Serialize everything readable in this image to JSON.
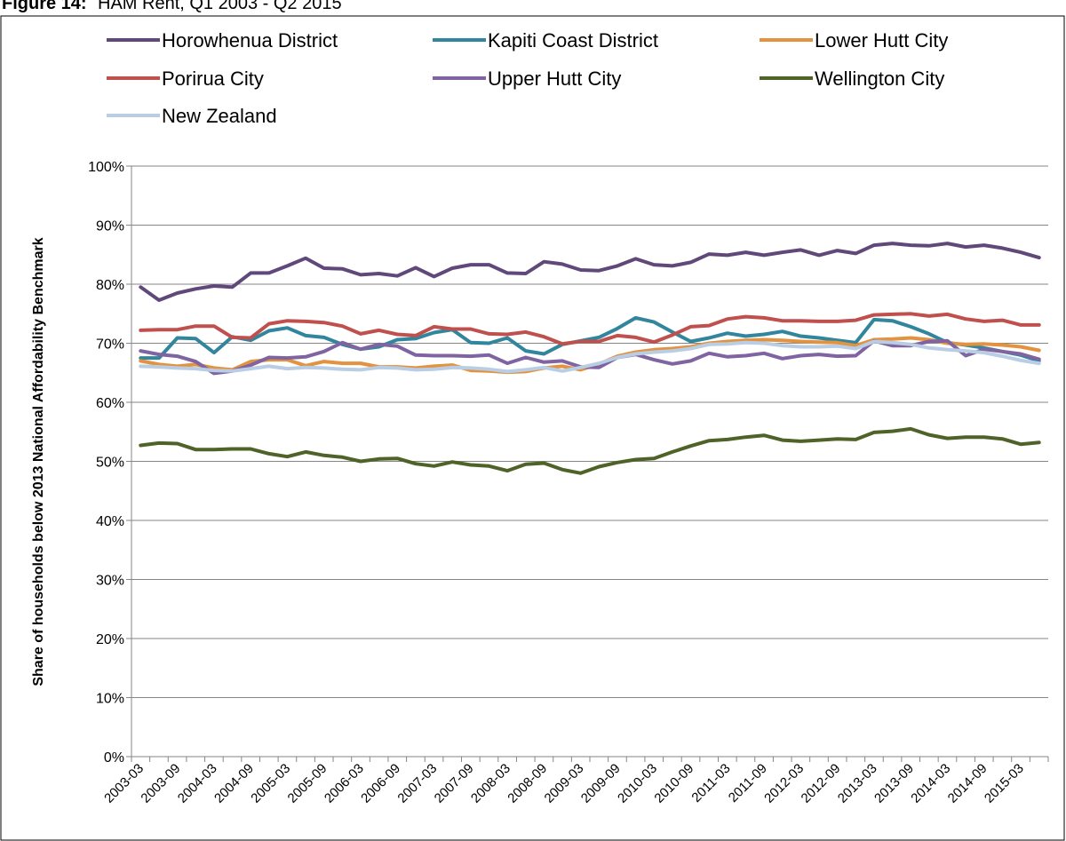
{
  "chart_data": {
    "type": "line",
    "title_label": "Figure 14:",
    "title": "HAM Rent, Q1 2003 - Q2 2015",
    "y_label": "Share of households below 2013 National Affordability Benchmark",
    "categories": [
      "2003-03",
      null,
      "2003-09",
      null,
      "2004-03",
      null,
      "2004-09",
      null,
      "2005-03",
      null,
      "2005-09",
      null,
      "2006-03",
      null,
      "2006-09",
      null,
      "2007-03",
      null,
      "2007-09",
      null,
      "2008-03",
      null,
      "2008-09",
      null,
      "2009-03",
      null,
      "2009-09",
      null,
      "2010-03",
      null,
      "2010-09",
      null,
      "2011-03",
      null,
      "2011-09",
      null,
      "2012-03",
      null,
      "2012-09",
      null,
      "2013-03",
      null,
      "2013-09",
      null,
      "2014-03",
      null,
      "2014-09",
      null,
      "2015-03",
      null
    ],
    "series": [
      {
        "name": "Horowhenua District",
        "color": "#60497a",
        "values": [
          79.5,
          77.3,
          78.5,
          79.2,
          79.7,
          79.5,
          81.9,
          81.9,
          83.1,
          84.4,
          82.7,
          82.6,
          81.6,
          81.8,
          81.4,
          82.8,
          81.3,
          82.7,
          83.3,
          83.3,
          81.9,
          81.8,
          83.8,
          83.4,
          82.4,
          82.3,
          83.1,
          84.3,
          83.3,
          83.1,
          83.7,
          85.1,
          84.9,
          85.4,
          84.9,
          85.4,
          85.8,
          84.9,
          85.7,
          85.2,
          86.6,
          86.9,
          86.6,
          86.5,
          86.9,
          86.3,
          86.6,
          86.1,
          85.4,
          84.5
        ]
      },
      {
        "name": "Kapiti Coast District",
        "color": "#31859c",
        "values": [
          67.5,
          67.5,
          70.9,
          70.8,
          68.4,
          71.1,
          70.5,
          72.1,
          72.6,
          71.3,
          71.0,
          69.8,
          69.0,
          69.4,
          70.6,
          70.8,
          71.8,
          72.3,
          70.1,
          70.0,
          70.9,
          68.7,
          68.2,
          69.8,
          70.4,
          71.0,
          72.5,
          74.3,
          73.6,
          71.9,
          70.3,
          70.9,
          71.7,
          71.2,
          71.5,
          72.0,
          71.2,
          70.9,
          70.5,
          70.1,
          74.0,
          73.8,
          72.8,
          71.6,
          70.1,
          69.7,
          69.2,
          68.6,
          68.0,
          67.0
        ]
      },
      {
        "name": "Lower Hutt City",
        "color": "#e3923f",
        "values": [
          67.0,
          66.4,
          66.1,
          66.4,
          65.8,
          65.5,
          66.9,
          67.2,
          67.2,
          66.2,
          66.9,
          66.6,
          66.6,
          66.0,
          66.0,
          65.8,
          66.1,
          66.3,
          65.4,
          65.3,
          65.1,
          65.2,
          65.8,
          66.1,
          65.5,
          66.5,
          67.8,
          68.5,
          68.9,
          69.1,
          69.4,
          70.0,
          70.3,
          70.5,
          70.6,
          70.5,
          70.3,
          70.2,
          70.1,
          69.6,
          70.6,
          70.7,
          70.9,
          70.6,
          70.0,
          69.8,
          69.9,
          69.7,
          69.4,
          68.8
        ]
      },
      {
        "name": "Porirua City",
        "color": "#c0504d",
        "values": [
          72.2,
          72.3,
          72.3,
          72.9,
          72.9,
          71.0,
          70.9,
          73.3,
          73.8,
          73.7,
          73.5,
          72.9,
          71.6,
          72.2,
          71.5,
          71.3,
          72.8,
          72.4,
          72.4,
          71.6,
          71.5,
          71.9,
          71.1,
          69.9,
          70.3,
          70.3,
          71.3,
          71.0,
          70.2,
          71.4,
          72.8,
          73.0,
          74.1,
          74.5,
          74.3,
          73.8,
          73.8,
          73.7,
          73.7,
          73.9,
          74.8,
          74.9,
          75.0,
          74.6,
          74.9,
          74.1,
          73.7,
          73.9,
          73.1,
          73.1
        ]
      },
      {
        "name": "Upper Hutt City",
        "color": "#8064a2",
        "values": [
          68.7,
          68.1,
          67.8,
          66.9,
          64.9,
          65.3,
          66.3,
          67.6,
          67.5,
          67.7,
          68.6,
          70.1,
          69.0,
          69.8,
          69.5,
          68.0,
          67.9,
          67.9,
          67.8,
          68.0,
          66.6,
          67.6,
          66.8,
          67.0,
          66.0,
          65.9,
          67.6,
          68.1,
          67.2,
          66.5,
          67.0,
          68.3,
          67.7,
          67.9,
          68.3,
          67.4,
          67.9,
          68.1,
          67.8,
          67.9,
          70.4,
          69.6,
          69.6,
          70.3,
          70.4,
          67.9,
          69.0,
          68.6,
          68.2,
          67.3
        ]
      },
      {
        "name": "Wellington City",
        "color": "#4f6228",
        "values": [
          52.7,
          53.1,
          53.0,
          52.0,
          52.0,
          52.1,
          52.1,
          51.3,
          50.8,
          51.6,
          51.0,
          50.7,
          50.0,
          50.4,
          50.5,
          49.6,
          49.2,
          49.9,
          49.4,
          49.2,
          48.4,
          49.5,
          49.7,
          48.6,
          48.0,
          49.1,
          49.8,
          50.3,
          50.5,
          51.6,
          52.6,
          53.5,
          53.7,
          54.1,
          54.4,
          53.6,
          53.4,
          53.6,
          53.8,
          53.7,
          54.9,
          55.1,
          55.5,
          54.5,
          53.9,
          54.1,
          54.1,
          53.8,
          52.9,
          53.2
        ]
      },
      {
        "name": "New Zealand",
        "color": "#b9cde5",
        "values": [
          66.1,
          66.0,
          65.8,
          65.7,
          65.4,
          65.3,
          65.7,
          66.1,
          65.7,
          65.9,
          65.8,
          65.6,
          65.5,
          65.9,
          65.8,
          65.5,
          65.6,
          65.9,
          65.8,
          65.6,
          65.2,
          65.5,
          65.9,
          65.3,
          65.9,
          66.6,
          67.6,
          68.2,
          68.5,
          68.7,
          69.1,
          69.8,
          69.9,
          70.1,
          70.0,
          69.6,
          69.4,
          69.4,
          69.5,
          69.1,
          70.3,
          70.1,
          69.8,
          69.2,
          68.9,
          68.7,
          68.4,
          67.8,
          67.1,
          66.6
        ]
      }
    ],
    "ylim": [
      0,
      100
    ],
    "yticks": [
      {
        "value": 0,
        "label": "0%"
      },
      {
        "value": 10,
        "label": "10%"
      },
      {
        "value": 20,
        "label": "20%"
      },
      {
        "value": 30,
        "label": "30%"
      },
      {
        "value": 40,
        "label": "40%"
      },
      {
        "value": 50,
        "label": "50%"
      },
      {
        "value": 60,
        "label": "60%"
      },
      {
        "value": 70,
        "label": "70%"
      },
      {
        "value": 80,
        "label": "80%"
      },
      {
        "value": 90,
        "label": "90%"
      },
      {
        "value": 100,
        "label": "100%"
      }
    ],
    "grid": true,
    "legend": "top"
  }
}
